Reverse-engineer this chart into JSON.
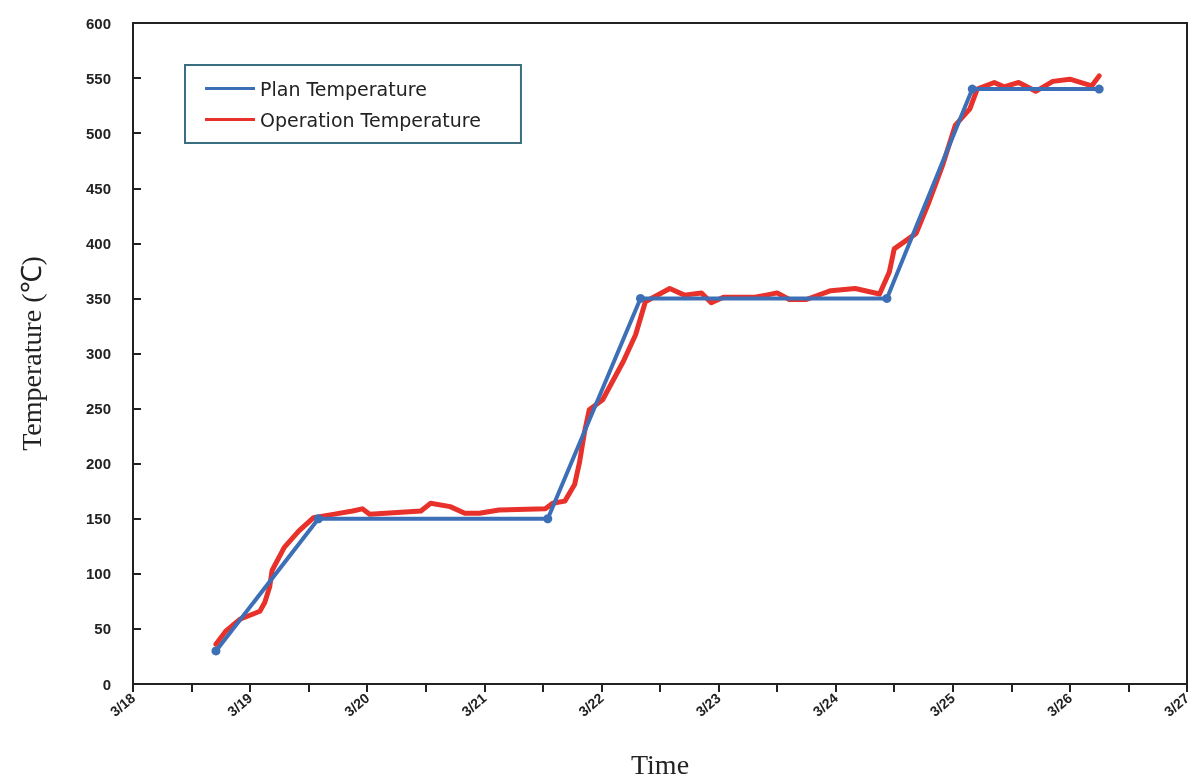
{
  "chart_data": {
    "type": "line",
    "xlabel": "Time",
    "ylabel": "Temperature (℃)",
    "xlim": [
      "--03-18",
      "--03-27"
    ],
    "xticks": [
      {
        "value": "--03-18",
        "label": "3/18"
      },
      {
        "value": "--03-18T12:00",
        "label": null
      },
      {
        "value": "--03-19",
        "label": "3/19"
      },
      {
        "value": "--03-19T12:00",
        "label": null
      },
      {
        "value": "--03-20",
        "label": "3/20"
      },
      {
        "value": "--03-20T12:00",
        "label": null
      },
      {
        "value": "--03-21",
        "label": "3/21"
      },
      {
        "value": "--03-21T12:00",
        "label": null
      },
      {
        "value": "--03-22",
        "label": "3/22"
      },
      {
        "value": "--03-22T12:00",
        "label": null
      },
      {
        "value": "--03-23",
        "label": "3/23"
      },
      {
        "value": "--03-23T12:00",
        "label": null
      },
      {
        "value": "--03-24",
        "label": "3/24"
      },
      {
        "value": "--03-24T12:00",
        "label": null
      },
      {
        "value": "--03-25",
        "label": "3/25"
      },
      {
        "value": "--03-25T12:00",
        "label": null
      },
      {
        "value": "--03-26",
        "label": "3/26"
      },
      {
        "value": "--03-26T12:00",
        "label": null
      },
      {
        "value": "--03-27",
        "label": "3/27"
      }
    ],
    "ylim": [
      0,
      600
    ],
    "yticks": [
      0,
      50,
      100,
      150,
      200,
      250,
      300,
      350,
      400,
      450,
      500,
      550,
      600
    ],
    "grid": false,
    "legend": "top left",
    "series": [
      {
        "name": "Plan Temperature",
        "color": "#3d6fb6",
        "marker": "circle",
        "x": [
          "--03-18T17:00",
          "--03-19T14:00",
          "--03-21T13:00",
          "--03-22T08:00",
          "--03-24T10:30",
          "--03-25T04:00",
          "--03-26T06:00"
        ],
        "values": [
          30,
          150,
          150,
          350,
          350,
          540,
          540
        ]
      },
      {
        "name": "Operation Temperature",
        "color": "#e8312a",
        "marker": "none",
        "x": [
          "--03-18T17:00",
          "--03-18T19:00",
          "--03-18T22:00",
          "--03-19T02:00",
          "--03-19T03:00",
          "--03-19T04:00",
          "--03-19T04:30",
          "--03-19T07:00",
          "--03-19T10:00",
          "--03-19T13:00",
          "--03-19T17:00",
          "--03-19T21:00",
          "--03-19T23:00",
          "--03-20T00:30",
          "--03-20T11:00",
          "--03-20T13:00",
          "--03-20T17:00",
          "--03-20T20:00",
          "--03-20T23:00",
          "--03-21T03:00",
          "--03-21T12:30",
          "--03-21T14:00",
          "--03-21T16:30",
          "--03-21T18:30",
          "--03-21T19:30",
          "--03-21T20:30",
          "--03-21T21:30",
          "--03-22T00:15",
          "--03-22T04:30",
          "--03-22T07:00",
          "--03-22T09:00",
          "--03-22T14:00",
          "--03-22T17:00",
          "--03-22T20:30",
          "--03-22T22:30",
          "--03-23T01:00",
          "--03-23T07:30",
          "--03-23T12:00",
          "--03-23T14:30",
          "--03-23T18:00",
          "--03-23T23:00",
          "--03-24T04:00",
          "--03-24T09:00",
          "--03-24T11:00",
          "--03-24T12:00",
          "--03-24T16:30",
          "--03-24T19:00",
          "--03-24T22:00",
          "--03-25T00:30",
          "--03-25T03:30",
          "--03-25T05:00",
          "--03-25T08:30",
          "--03-25T10:30",
          "--03-25T13:30",
          "--03-25T17:00",
          "--03-25T20:30",
          "--03-26T00:00",
          "--03-26T04:30",
          "--03-26T06:00"
        ],
        "values": [
          36,
          48,
          59,
          66,
          74,
          88,
          103,
          124,
          139,
          151,
          154,
          157,
          159,
          154,
          157,
          164,
          161,
          155,
          155,
          158,
          159,
          164,
          166,
          181,
          201,
          228,
          249,
          258,
          293,
          317,
          347,
          359,
          353,
          355,
          346,
          351,
          351,
          355,
          349,
          349,
          357,
          359,
          354,
          374,
          395,
          409,
          436,
          472,
          507,
          522,
          540,
          546,
          542,
          546,
          538,
          547,
          549,
          543,
          552
        ]
      }
    ]
  }
}
